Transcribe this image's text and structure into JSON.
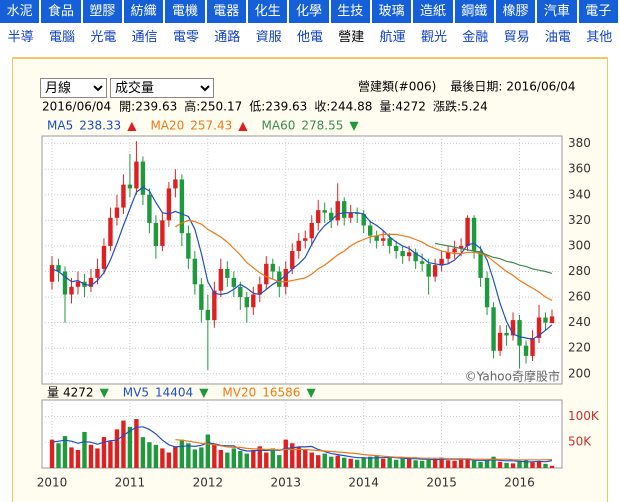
{
  "nav": {
    "row1": [
      "水泥",
      "食品",
      "塑膠",
      "紡織",
      "電機",
      "電器",
      "化生",
      "化學",
      "生技",
      "玻璃",
      "造紙",
      "鋼鐵",
      "橡膠",
      "汽車",
      "電子"
    ],
    "row2": [
      "半導",
      "電腦",
      "光電",
      "通信",
      "電零",
      "通路",
      "資服",
      "他電",
      "營建",
      "航運",
      "觀光",
      "金融",
      "貿易",
      "油電",
      "其他"
    ]
  },
  "controls": {
    "period": "月線",
    "indicator": "成交量"
  },
  "header": {
    "group": "營建類(#006)",
    "last_date_label": "最後日期:",
    "last_date": "2016/06/04",
    "open_label": "開:",
    "high_label": "高:",
    "low_label": "低:",
    "close_label": "收:",
    "volume_label": "量:",
    "change_label": "漲跌:",
    "change": 5.24
  },
  "chart_data": [
    {
      "type": "candlestick",
      "up_color": "#e02020",
      "down_color": "#1e9a3c",
      "watermark": "©Yahoo奇摩股市",
      "ylim": [
        192,
        386
      ],
      "yticks": [
        200,
        220,
        240,
        260,
        280,
        300,
        320,
        340,
        360,
        380
      ],
      "grid": true,
      "open": [
        272,
        285,
        280,
        262,
        268,
        272,
        268,
        275,
        282,
        300,
        322,
        330,
        348,
        345,
        366,
        340,
        318,
        300,
        320,
        345,
        352,
        310,
        290,
        270,
        250,
        242,
        265,
        282,
        275,
        268,
        260,
        252,
        262,
        270,
        286,
        280,
        268,
        282,
        296,
        304,
        306,
        318,
        328,
        326,
        320,
        335,
        322,
        326,
        325,
        316,
        308,
        304,
        306,
        300,
        296,
        292,
        295,
        288,
        286,
        276,
        285,
        290,
        295,
        298,
        300,
        322,
        296,
        275,
        252,
        218,
        232,
        230,
        242,
        222,
        214,
        228,
        244,
        239.63
      ],
      "high": [
        292,
        290,
        284,
        275,
        280,
        278,
        282,
        290,
        306,
        330,
        340,
        356,
        372,
        382,
        370,
        345,
        324,
        326,
        350,
        360,
        356,
        316,
        296,
        275,
        262,
        272,
        290,
        288,
        280,
        272,
        264,
        268,
        276,
        292,
        290,
        284,
        288,
        302,
        310,
        312,
        324,
        336,
        334,
        330,
        349,
        338,
        332,
        330,
        328,
        320,
        312,
        312,
        310,
        304,
        300,
        300,
        298,
        294,
        290,
        290,
        296,
        300,
        304,
        306,
        324,
        324,
        300,
        280,
        256,
        238,
        238,
        248,
        246,
        226,
        234,
        254,
        248,
        250.17
      ],
      "low": [
        266,
        272,
        240,
        255,
        262,
        260,
        264,
        270,
        278,
        296,
        316,
        325,
        338,
        340,
        332,
        310,
        290,
        296,
        315,
        338,
        300,
        282,
        262,
        240,
        203,
        236,
        260,
        268,
        260,
        250,
        240,
        246,
        256,
        266,
        274,
        260,
        262,
        278,
        290,
        298,
        300,
        312,
        318,
        314,
        316,
        316,
        318,
        318,
        310,
        302,
        298,
        300,
        294,
        290,
        286,
        288,
        282,
        280,
        262,
        272,
        280,
        286,
        290,
        292,
        296,
        290,
        268,
        246,
        212,
        214,
        222,
        226,
        204,
        208,
        210,
        224,
        234,
        239.63
      ],
      "close": [
        285,
        280,
        262,
        268,
        272,
        268,
        275,
        282,
        300,
        322,
        330,
        348,
        345,
        366,
        340,
        318,
        300,
        320,
        345,
        352,
        310,
        290,
        270,
        250,
        242,
        265,
        282,
        275,
        268,
        260,
        252,
        262,
        270,
        286,
        280,
        268,
        282,
        296,
        304,
        306,
        318,
        328,
        326,
        320,
        335,
        322,
        326,
        325,
        316,
        308,
        304,
        306,
        300,
        296,
        292,
        295,
        288,
        286,
        276,
        285,
        290,
        295,
        298,
        300,
        322,
        296,
        275,
        252,
        218,
        232,
        230,
        242,
        222,
        214,
        228,
        244,
        240,
        244.88
      ],
      "series": [
        {
          "name": "MA5",
          "color": "#1f4fc8",
          "trend": "▲",
          "values": [
            282,
            280,
            276,
            272,
            273,
            270,
            269,
            273,
            279,
            289,
            302,
            316,
            329,
            342,
            346,
            343,
            334,
            326,
            325,
            327,
            325,
            323,
            313,
            294,
            272,
            263,
            262,
            263,
            266,
            270,
            267,
            263,
            262,
            266,
            270,
            273,
            277,
            282,
            286,
            291,
            301,
            310,
            316,
            320,
            325,
            326,
            326,
            326,
            325,
            319,
            316,
            312,
            307,
            303,
            300,
            298,
            294,
            291,
            287,
            286,
            285,
            286,
            289,
            294,
            301,
            302,
            298,
            289,
            273,
            255,
            241,
            231,
            229,
            228,
            227,
            230,
            234,
            238.33
          ]
        },
        {
          "name": "MA20",
          "color": "#f07818",
          "trend": "▲",
          "values": [
            null,
            null,
            null,
            null,
            null,
            null,
            null,
            null,
            null,
            null,
            null,
            null,
            null,
            null,
            null,
            null,
            null,
            null,
            null,
            315,
            318,
            320,
            319,
            317,
            313,
            310,
            307,
            303,
            298,
            293,
            287,
            283,
            279,
            276,
            274,
            272,
            272,
            273,
            274,
            275,
            278,
            282,
            285,
            289,
            293,
            296,
            300,
            303,
            305,
            307,
            308,
            309,
            309,
            309,
            308,
            307,
            305,
            303,
            300,
            298,
            296,
            295,
            294,
            294,
            295,
            295,
            294,
            292,
            288,
            284,
            280,
            277,
            273,
            270,
            267,
            264,
            260,
            257.43
          ]
        },
        {
          "name": "MA60",
          "color": "#3c8c50",
          "trend": "▼",
          "values": [
            null,
            null,
            null,
            null,
            null,
            null,
            null,
            null,
            null,
            null,
            null,
            null,
            null,
            null,
            null,
            null,
            null,
            null,
            null,
            null,
            null,
            null,
            null,
            null,
            null,
            null,
            null,
            null,
            null,
            null,
            null,
            null,
            null,
            null,
            null,
            null,
            null,
            null,
            null,
            null,
            null,
            null,
            null,
            null,
            null,
            null,
            null,
            null,
            null,
            null,
            null,
            null,
            null,
            null,
            null,
            null,
            null,
            null,
            null,
            302,
            301,
            300,
            299,
            298,
            297,
            296,
            295,
            293,
            291,
            290,
            288,
            287,
            285,
            284,
            282,
            281,
            280,
            278.55
          ]
        }
      ]
    },
    {
      "type": "bar",
      "name": "量",
      "trend": "▼",
      "categories": [
        "2010",
        null,
        null,
        null,
        null,
        null,
        null,
        null,
        null,
        null,
        null,
        null,
        "2011",
        null,
        null,
        null,
        null,
        null,
        null,
        null,
        null,
        null,
        null,
        null,
        "2012",
        null,
        null,
        null,
        null,
        null,
        null,
        null,
        null,
        null,
        null,
        null,
        "2013",
        null,
        null,
        null,
        null,
        null,
        null,
        null,
        null,
        null,
        null,
        null,
        "2014",
        null,
        null,
        null,
        null,
        null,
        null,
        null,
        null,
        null,
        null,
        null,
        "2015",
        null,
        null,
        null,
        null,
        null,
        null,
        null,
        null,
        null,
        null,
        null,
        "2016",
        null,
        null,
        null,
        null,
        null
      ],
      "values": [
        55000,
        48000,
        62000,
        40000,
        35000,
        70000,
        45000,
        38000,
        60000,
        52000,
        75000,
        92000,
        80000,
        95000,
        60000,
        50000,
        45000,
        38000,
        30000,
        42000,
        55000,
        48000,
        36000,
        40000,
        65000,
        45000,
        35000,
        30000,
        38000,
        33000,
        28000,
        35000,
        42000,
        30000,
        38000,
        25000,
        55000,
        48000,
        40000,
        35000,
        30000,
        25000,
        28000,
        22000,
        24000,
        20000,
        18000,
        16000,
        20000,
        22000,
        24000,
        18000,
        20000,
        16000,
        18000,
        20000,
        15000,
        14000,
        16000,
        18000,
        20000,
        15000,
        14000,
        16000,
        18000,
        14000,
        12000,
        15000,
        22000,
        12000,
        10000,
        9000,
        14000,
        16000,
        11000,
        13000,
        8000,
        4272
      ],
      "ylim": [
        0,
        132000
      ],
      "yticks": [
        {
          "value": 50000,
          "label": "50K"
        },
        {
          "value": 100000,
          "label": "100K"
        }
      ],
      "series": [
        {
          "name": "MV5",
          "color": "#1f4fc8",
          "trend": "▼",
          "values": [
            50000,
            52000,
            54000,
            52000,
            48000,
            51000,
            50000,
            46000,
            50000,
            53000,
            54000,
            63000,
            72000,
            79000,
            80000,
            75000,
            66000,
            54000,
            45000,
            41000,
            42000,
            43000,
            42000,
            44000,
            49000,
            47000,
            44000,
            43000,
            43000,
            36000,
            33000,
            33000,
            35000,
            34000,
            35000,
            34000,
            38000,
            39000,
            41000,
            41000,
            42000,
            36000,
            32000,
            28000,
            26000,
            24000,
            22000,
            20000,
            20000,
            19000,
            20000,
            20000,
            21000,
            20000,
            19000,
            18000,
            18000,
            17000,
            17000,
            16000,
            17000,
            17000,
            17000,
            17000,
            17000,
            15000,
            15000,
            15000,
            16000,
            15000,
            14000,
            14000,
            13000,
            12000,
            12000,
            13000,
            12000,
            14404
          ]
        },
        {
          "name": "MV20",
          "color": "#f07818",
          "trend": "▼",
          "values": [
            null,
            null,
            null,
            null,
            null,
            null,
            null,
            null,
            null,
            null,
            null,
            null,
            null,
            null,
            null,
            null,
            null,
            null,
            null,
            55000,
            54000,
            52000,
            50000,
            48000,
            47000,
            45000,
            43000,
            41000,
            40000,
            40000,
            38000,
            37000,
            37000,
            36000,
            36000,
            35000,
            36000,
            36000,
            36000,
            36000,
            35000,
            34000,
            33000,
            32000,
            31000,
            30000,
            29000,
            28000,
            26000,
            25000,
            24000,
            23000,
            22000,
            21000,
            21000,
            20000,
            20000,
            19000,
            19000,
            19000,
            19000,
            18000,
            18000,
            18000,
            18000,
            17000,
            17000,
            17000,
            17000,
            17000,
            17000,
            16000,
            16000,
            16000,
            16000,
            16000,
            16000,
            16586
          ]
        }
      ]
    }
  ]
}
